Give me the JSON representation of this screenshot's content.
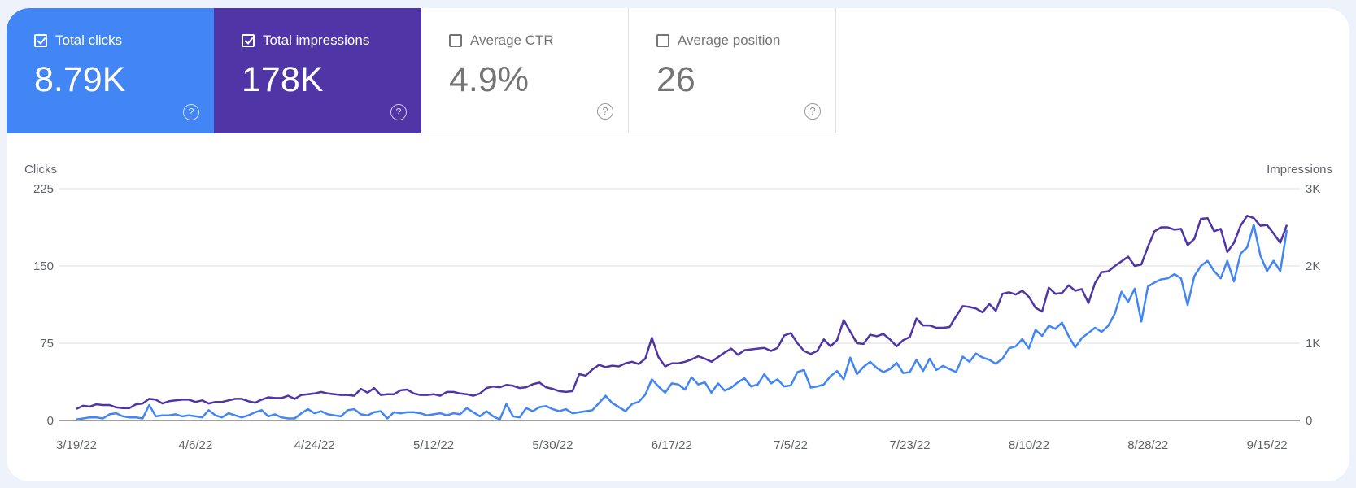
{
  "metrics": [
    {
      "label": "Total clicks",
      "value": "8.79K",
      "checked": true,
      "color": "#4285f4"
    },
    {
      "label": "Total impressions",
      "value": "178K",
      "checked": true,
      "color": "#4f35a6"
    },
    {
      "label": "Average CTR",
      "value": "4.9%",
      "checked": false
    },
    {
      "label": "Average position",
      "value": "26",
      "checked": false
    }
  ],
  "help_icon": "?",
  "chart_data": {
    "type": "line",
    "grid": true,
    "legend": "none",
    "x_ticks": [
      "3/19/22",
      "4/6/22",
      "4/24/22",
      "5/12/22",
      "5/30/22",
      "6/17/22",
      "7/5/22",
      "7/23/22",
      "8/10/22",
      "8/28/22",
      "9/15/22"
    ],
    "x_interval": "daily",
    "left_axis": {
      "label": "Clicks",
      "ticks": [
        "0",
        "75",
        "150",
        "225"
      ],
      "ylim": [
        0,
        225
      ]
    },
    "right_axis": {
      "label": "Impressions",
      "ticks": [
        "0",
        "1K",
        "2K",
        "3K"
      ],
      "ylim": [
        0,
        3000
      ]
    },
    "series": [
      {
        "name": "Clicks",
        "axis": "left",
        "color": "#4285f4",
        "values": [
          1,
          2,
          3,
          3,
          2,
          6,
          7,
          4,
          3,
          3,
          2,
          15,
          4,
          5,
          5,
          6,
          4,
          5,
          4,
          3,
          10,
          5,
          3,
          7,
          5,
          3,
          5,
          8,
          10,
          4,
          6,
          3,
          2,
          2,
          7,
          11,
          7,
          9,
          6,
          5,
          4,
          10,
          11,
          6,
          5,
          8,
          9,
          2,
          8,
          7,
          8,
          8,
          7,
          5,
          6,
          7,
          5,
          7,
          6,
          12,
          8,
          4,
          9,
          4,
          1,
          16,
          4,
          3,
          12,
          9,
          13,
          14,
          11,
          9,
          11,
          7,
          8,
          9,
          10,
          17,
          24,
          17,
          13,
          9,
          16,
          18,
          25,
          40,
          33,
          27,
          36,
          35,
          30,
          42,
          35,
          37,
          27,
          36,
          29,
          32,
          37,
          41,
          33,
          35,
          45,
          36,
          40,
          33,
          34,
          47,
          49,
          32,
          33,
          35,
          43,
          48,
          40,
          61,
          45,
          52,
          57,
          51,
          47,
          50,
          56,
          46,
          47,
          59,
          48,
          60,
          49,
          53,
          50,
          47,
          62,
          57,
          65,
          61,
          59,
          55,
          60,
          70,
          72,
          79,
          70,
          88,
          82,
          92,
          89,
          95,
          82,
          71,
          80,
          85,
          90,
          86,
          92,
          104,
          125,
          115,
          128,
          96,
          130,
          134,
          137,
          138,
          142,
          138,
          112,
          140,
          150,
          155,
          145,
          138,
          155,
          135,
          162,
          168,
          190,
          160,
          145,
          155,
          145,
          185
        ]
      },
      {
        "name": "Impressions",
        "axis": "right",
        "color": "#4f35a6",
        "values": [
          150,
          190,
          180,
          210,
          200,
          200,
          170,
          160,
          160,
          210,
          220,
          280,
          270,
          220,
          250,
          260,
          270,
          270,
          240,
          260,
          220,
          240,
          240,
          260,
          280,
          280,
          250,
          230,
          270,
          300,
          290,
          290,
          320,
          280,
          330,
          340,
          350,
          370,
          350,
          340,
          330,
          330,
          320,
          410,
          360,
          420,
          330,
          340,
          340,
          390,
          400,
          350,
          330,
          330,
          340,
          320,
          370,
          370,
          350,
          340,
          320,
          350,
          420,
          440,
          430,
          460,
          450,
          420,
          430,
          470,
          490,
          430,
          410,
          380,
          370,
          380,
          600,
          580,
          660,
          720,
          690,
          710,
          700,
          740,
          760,
          730,
          800,
          1070,
          820,
          700,
          740,
          740,
          760,
          790,
          830,
          800,
          760,
          820,
          880,
          930,
          850,
          910,
          920,
          930,
          940,
          900,
          940,
          1100,
          1130,
          1000,
          900,
          860,
          900,
          1050,
          960,
          1040,
          1300,
          1150,
          1000,
          990,
          1110,
          1090,
          1120,
          1050,
          960,
          1040,
          1080,
          1320,
          1230,
          1230,
          1200,
          1200,
          1210,
          1350,
          1480,
          1470,
          1450,
          1400,
          1510,
          1420,
          1640,
          1660,
          1630,
          1680,
          1600,
          1460,
          1410,
          1720,
          1640,
          1650,
          1750,
          1680,
          1700,
          1520,
          1780,
          1920,
          1930,
          2000,
          2060,
          2120,
          2000,
          2020,
          2250,
          2450,
          2500,
          2500,
          2470,
          2480,
          2270,
          2350,
          2610,
          2620,
          2450,
          2480,
          2180,
          2300,
          2520,
          2650,
          2620,
          2520,
          2530,
          2420,
          2300,
          2530
        ]
      }
    ]
  }
}
